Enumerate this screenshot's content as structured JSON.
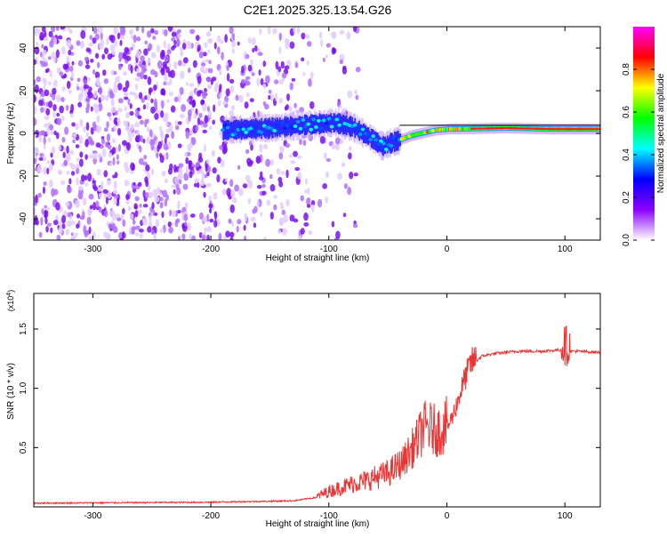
{
  "title": "C2E1.2025.325.13.54.G26",
  "chart_data": [
    {
      "type": "heatmap",
      "xlabel": "Height of straight line (km)",
      "ylabel": "Frequency (Hz)",
      "xlim": [
        -350,
        130
      ],
      "ylim": [
        -50,
        50
      ],
      "xticks": [
        -300,
        -200,
        -100,
        0,
        100
      ],
      "yticks": [
        -40,
        -20,
        0,
        20,
        40
      ],
      "colorbar": {
        "label": "Normalized spectral amplitude",
        "range": [
          0,
          1
        ],
        "ticks": [
          0.0,
          0.2,
          0.4,
          0.6,
          0.8
        ],
        "colors": [
          "#ffffff",
          "#8b00ff",
          "#0000ff",
          "#00ffff",
          "#00ff00",
          "#ffff00",
          "#ff0000",
          "#ff00ff"
        ]
      },
      "noise_region": {
        "x_start": -350,
        "x_end": -115
      },
      "ridge": [
        {
          "x": -190,
          "freq": 1.5
        },
        {
          "x": -150,
          "freq": 2.5
        },
        {
          "x": -120,
          "freq": 4.0
        },
        {
          "x": -95,
          "freq": 5.0
        },
        {
          "x": -80,
          "freq": 3.0
        },
        {
          "x": -65,
          "freq": -2.0
        },
        {
          "x": -55,
          "freq": -6.0
        },
        {
          "x": -45,
          "freq": -4.0
        },
        {
          "x": -30,
          "freq": -1.0
        },
        {
          "x": -10,
          "freq": 1.5
        },
        {
          "x": 0,
          "freq": 2.0
        },
        {
          "x": 50,
          "freq": 2.5
        },
        {
          "x": 90,
          "freq": 2.0
        },
        {
          "x": 130,
          "freq": 2.0
        }
      ]
    },
    {
      "type": "line",
      "xlabel": "Height of straight line (km)",
      "ylabel": "SNR (10 * v/v)",
      "y_multiplier_label": "(x10",
      "y_multiplier_exp": "4",
      "y_multiplier_close": ")",
      "xlim": [
        -350,
        130
      ],
      "ylim": [
        0,
        18000
      ],
      "xticks": [
        -300,
        -200,
        -100,
        0,
        100
      ],
      "yticks": [
        5000,
        10000,
        15000
      ],
      "ytick_labels": [
        "0.5",
        "1.0",
        "1.5"
      ],
      "color": "#ee3333",
      "series": [
        {
          "x": [
            -350,
            -200,
            -130,
            -110,
            -100,
            -90,
            -80,
            -70,
            -60,
            -50,
            -40,
            -30,
            -25,
            -20,
            -15,
            -10,
            -5,
            0,
            5,
            10,
            15,
            20,
            25,
            30,
            40,
            60,
            80,
            95,
            100,
            105,
            110,
            130
          ],
          "values": [
            300,
            380,
            500,
            800,
            1200,
            1500,
            1800,
            2000,
            2300,
            2600,
            3200,
            4500,
            5200,
            6200,
            6200,
            6000,
            6000,
            6500,
            7500,
            9000,
            10500,
            11800,
            12300,
            12700,
            12900,
            13100,
            13100,
            13200,
            13300,
            13100,
            13100,
            13000
          ]
        }
      ]
    }
  ]
}
